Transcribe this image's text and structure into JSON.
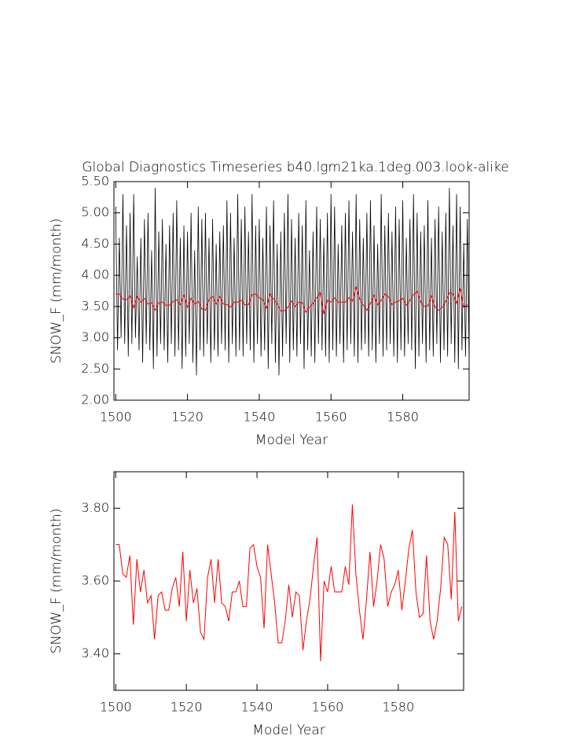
{
  "chart_data": [
    {
      "type": "line",
      "title": "Global Diagnostics Timeseries b40.lgm21ka.1deg.003.look-alike",
      "ylabel": "SNOW_F (mm/month)",
      "xlabel": "Model Year",
      "xlim": [
        1499.5,
        1598.5
      ],
      "ylim": [
        2,
        5.5
      ],
      "xticks": [
        1500,
        1520,
        1540,
        1560,
        1580
      ],
      "yticks": [
        {
          "value": 2,
          "label": "2.00"
        },
        {
          "value": 2.5,
          "label": "2.50"
        },
        {
          "value": 3,
          "label": "3.00"
        },
        {
          "value": 3.5,
          "label": "3.50"
        },
        {
          "value": 4,
          "label": "4.00"
        },
        {
          "value": 4.5,
          "label": "4.50"
        },
        {
          "value": 5,
          "label": "5.00"
        },
        {
          "value": 5.5,
          "label": "5.50"
        }
      ],
      "series": [
        {
          "color": "#000000",
          "x": [
            1500,
            1500.5,
            1501,
            1501.5,
            1502,
            1502.5,
            1503,
            1503.5,
            1504,
            1504.5,
            1505,
            1505.5,
            1506,
            1506.5,
            1507,
            1507.5,
            1508,
            1508.5,
            1509,
            1509.5,
            1510,
            1510.5,
            1511,
            1511.5,
            1512,
            1512.5,
            1513,
            1513.5,
            1514,
            1514.5,
            1515,
            1515.5,
            1516,
            1516.5,
            1517,
            1517.5,
            1518,
            1518.5,
            1519,
            1519.5,
            1520,
            1520.5,
            1521,
            1521.5,
            1522,
            1522.5,
            1523,
            1523.5,
            1524,
            1524.5,
            1525,
            1525.5,
            1526,
            1526.5,
            1527,
            1527.5,
            1528,
            1528.5,
            1529,
            1529.5,
            1530,
            1530.5,
            1531,
            1531.5,
            1532,
            1532.5,
            1533,
            1533.5,
            1534,
            1534.5,
            1535,
            1535.5,
            1536,
            1536.5,
            1537,
            1537.5,
            1538,
            1538.5,
            1539,
            1539.5,
            1540,
            1540.5,
            1541,
            1541.5,
            1542,
            1542.5,
            1543,
            1543.5,
            1544,
            1544.5,
            1545,
            1545.5,
            1546,
            1546.5,
            1547,
            1547.5,
            1548,
            1548.5,
            1549,
            1549.5,
            1550,
            1550.5,
            1551,
            1551.5,
            1552,
            1552.5,
            1553,
            1553.5,
            1554,
            1554.5,
            1555,
            1555.5,
            1556,
            1556.5,
            1557,
            1557.5,
            1558,
            1558.5,
            1559,
            1559.5,
            1560,
            1560.5,
            1561,
            1561.5,
            1562,
            1562.5,
            1563,
            1563.5,
            1564,
            1564.5,
            1565,
            1565.5,
            1566,
            1566.5,
            1567,
            1567.5,
            1568,
            1568.5,
            1569,
            1569.5,
            1570,
            1570.5,
            1571,
            1571.5,
            1572,
            1572.5,
            1573,
            1573.5,
            1574,
            1574.5,
            1575,
            1575.5,
            1576,
            1576.5,
            1577,
            1577.5,
            1578,
            1578.5,
            1579,
            1579.5,
            1580,
            1580.5,
            1581,
            1581.5,
            1582,
            1582.5,
            1583,
            1583.5,
            1584,
            1584.5,
            1585,
            1585.5,
            1586,
            1586.5,
            1587,
            1587.5,
            1588,
            1588.5,
            1589,
            1589.5,
            1590,
            1590.5,
            1591,
            1591.5,
            1592,
            1592.5,
            1593,
            1593.5,
            1594,
            1594.5,
            1595,
            1595.5,
            1596,
            1596.5,
            1597,
            1597.5,
            1598,
            1598.5
          ],
          "values": [
            5.1,
            2.8,
            4.6,
            3.0,
            5.3,
            2.9,
            4.8,
            2.7,
            5.0,
            2.9,
            5.3,
            3.0,
            4.3,
            2.8,
            4.6,
            2.6,
            4.9,
            2.9,
            5.0,
            2.8,
            4.4,
            2.5,
            5.4,
            2.7,
            4.7,
            2.9,
            4.9,
            2.8,
            4.5,
            2.6,
            4.8,
            2.9,
            5.0,
            2.7,
            5.2,
            2.8,
            4.6,
            2.5,
            4.8,
            2.7,
            4.7,
            2.9,
            5.0,
            2.6,
            4.4,
            2.4,
            5.1,
            2.8,
            4.9,
            2.7,
            5.0,
            2.9,
            4.6,
            2.6,
            4.9,
            2.8,
            4.5,
            2.7,
            4.7,
            2.9,
            4.8,
            2.8,
            5.2,
            2.6,
            5.0,
            2.9,
            4.6,
            2.7,
            5.3,
            2.8,
            4.9,
            2.7,
            5.1,
            2.9,
            4.7,
            2.8,
            5.3,
            2.6,
            4.8,
            2.9,
            4.9,
            2.7,
            4.6,
            2.8,
            5.1,
            2.5,
            4.8,
            2.9,
            5.2,
            2.6,
            4.5,
            2.4,
            4.7,
            2.7,
            5.0,
            2.9,
            5.3,
            2.6,
            4.9,
            2.8,
            4.6,
            2.7,
            5.0,
            2.9,
            4.8,
            2.5,
            5.2,
            2.8,
            4.4,
            2.7,
            4.7,
            2.6,
            5.1,
            2.9,
            4.9,
            2.8,
            4.6,
            2.7,
            5.0,
            2.6,
            5.3,
            2.8,
            5.1,
            2.7,
            4.5,
            2.9,
            4.8,
            2.6,
            5.0,
            2.8,
            5.2,
            2.9,
            4.7,
            2.7,
            5.3,
            2.6,
            4.9,
            2.8,
            4.6,
            2.9,
            5.0,
            2.7,
            5.2,
            2.8,
            4.8,
            2.6,
            4.5,
            2.9,
            5.3,
            2.7,
            4.8,
            2.8,
            5.0,
            2.9,
            4.7,
            2.7,
            5.1,
            2.6,
            4.9,
            2.8,
            5.2,
            2.7,
            4.6,
            2.9,
            4.9,
            2.8,
            5.3,
            2.5,
            5.0,
            2.7,
            4.7,
            2.9,
            4.8,
            2.6,
            5.2,
            2.8,
            4.6,
            2.7,
            4.9,
            2.9,
            5.1,
            2.6,
            4.7,
            2.8,
            5.0,
            2.7,
            5.4,
            2.9,
            4.8,
            2.6,
            5.3,
            2.5,
            5.1,
            2.8,
            4.5,
            2.7,
            4.9,
            2.6
          ]
        },
        {
          "color": "#ff0000",
          "x": [
            1500,
            1501,
            1502,
            1503,
            1504,
            1505,
            1506,
            1507,
            1508,
            1509,
            1510,
            1511,
            1512,
            1513,
            1514,
            1515,
            1516,
            1517,
            1518,
            1519,
            1520,
            1521,
            1522,
            1523,
            1524,
            1525,
            1526,
            1527,
            1528,
            1529,
            1530,
            1531,
            1532,
            1533,
            1534,
            1535,
            1536,
            1537,
            1538,
            1539,
            1540,
            1541,
            1542,
            1543,
            1544,
            1545,
            1546,
            1547,
            1548,
            1549,
            1550,
            1551,
            1552,
            1553,
            1554,
            1555,
            1556,
            1557,
            1558,
            1559,
            1560,
            1561,
            1562,
            1563,
            1564,
            1565,
            1566,
            1567,
            1568,
            1569,
            1570,
            1571,
            1572,
            1573,
            1574,
            1575,
            1576,
            1577,
            1578,
            1579,
            1580,
            1581,
            1582,
            1583,
            1584,
            1585,
            1586,
            1587,
            1588,
            1589,
            1590,
            1591,
            1592,
            1593,
            1594,
            1595,
            1596,
            1597,
            1598
          ],
          "values": [
            3.7,
            3.7,
            3.62,
            3.61,
            3.67,
            3.48,
            3.66,
            3.57,
            3.63,
            3.54,
            3.56,
            3.44,
            3.56,
            3.57,
            3.52,
            3.52,
            3.58,
            3.61,
            3.53,
            3.68,
            3.49,
            3.63,
            3.54,
            3.58,
            3.46,
            3.44,
            3.61,
            3.66,
            3.54,
            3.66,
            3.54,
            3.53,
            3.49,
            3.57,
            3.57,
            3.6,
            3.53,
            3.53,
            3.69,
            3.7,
            3.64,
            3.61,
            3.47,
            3.7,
            3.62,
            3.54,
            3.43,
            3.43,
            3.49,
            3.59,
            3.5,
            3.57,
            3.56,
            3.41,
            3.49,
            3.55,
            3.64,
            3.72,
            3.38,
            3.6,
            3.57,
            3.64,
            3.57,
            3.57,
            3.57,
            3.64,
            3.59,
            3.81,
            3.62,
            3.52,
            3.44,
            3.55,
            3.68,
            3.53,
            3.6,
            3.7,
            3.66,
            3.53,
            3.57,
            3.59,
            3.63,
            3.52,
            3.6,
            3.69,
            3.74,
            3.57,
            3.5,
            3.51,
            3.67,
            3.49,
            3.44,
            3.49,
            3.58,
            3.72,
            3.7,
            3.55,
            3.79,
            3.49,
            3.53
          ]
        }
      ]
    },
    {
      "type": "line",
      "ylabel": "SNOW_F (mm/month)",
      "xlabel": "Model Year",
      "xlim": [
        1499.5,
        1598.5
      ],
      "ylim": [
        3.3,
        3.9
      ],
      "xticks": [
        1500,
        1520,
        1540,
        1560,
        1580
      ],
      "yticks": [
        {
          "value": 3.4,
          "label": "3.40"
        },
        {
          "value": 3.6,
          "label": "3.60"
        },
        {
          "value": 3.8,
          "label": "3.80"
        }
      ],
      "series": [
        {
          "color": "#ff0000",
          "x": [
            1500,
            1501,
            1502,
            1503,
            1504,
            1505,
            1506,
            1507,
            1508,
            1509,
            1510,
            1511,
            1512,
            1513,
            1514,
            1515,
            1516,
            1517,
            1518,
            1519,
            1520,
            1521,
            1522,
            1523,
            1524,
            1525,
            1526,
            1527,
            1528,
            1529,
            1530,
            1531,
            1532,
            1533,
            1534,
            1535,
            1536,
            1537,
            1538,
            1539,
            1540,
            1541,
            1542,
            1543,
            1544,
            1545,
            1546,
            1547,
            1548,
            1549,
            1550,
            1551,
            1552,
            1553,
            1554,
            1555,
            1556,
            1557,
            1558,
            1559,
            1560,
            1561,
            1562,
            1563,
            1564,
            1565,
            1566,
            1567,
            1568,
            1569,
            1570,
            1571,
            1572,
            1573,
            1574,
            1575,
            1576,
            1577,
            1578,
            1579,
            1580,
            1581,
            1582,
            1583,
            1584,
            1585,
            1586,
            1587,
            1588,
            1589,
            1590,
            1591,
            1592,
            1593,
            1594,
            1595,
            1596,
            1597,
            1598
          ],
          "values": [
            3.7,
            3.7,
            3.62,
            3.61,
            3.67,
            3.48,
            3.66,
            3.57,
            3.63,
            3.54,
            3.56,
            3.44,
            3.56,
            3.57,
            3.52,
            3.52,
            3.58,
            3.61,
            3.53,
            3.68,
            3.49,
            3.63,
            3.54,
            3.58,
            3.46,
            3.44,
            3.61,
            3.66,
            3.54,
            3.66,
            3.54,
            3.53,
            3.49,
            3.57,
            3.57,
            3.6,
            3.53,
            3.53,
            3.69,
            3.7,
            3.64,
            3.61,
            3.47,
            3.7,
            3.62,
            3.54,
            3.43,
            3.43,
            3.49,
            3.59,
            3.5,
            3.57,
            3.56,
            3.41,
            3.49,
            3.55,
            3.64,
            3.72,
            3.38,
            3.6,
            3.57,
            3.64,
            3.57,
            3.57,
            3.57,
            3.64,
            3.59,
            3.81,
            3.62,
            3.52,
            3.44,
            3.55,
            3.68,
            3.53,
            3.6,
            3.7,
            3.66,
            3.53,
            3.57,
            3.59,
            3.63,
            3.52,
            3.6,
            3.69,
            3.74,
            3.57,
            3.5,
            3.51,
            3.67,
            3.49,
            3.44,
            3.49,
            3.58,
            3.72,
            3.7,
            3.55,
            3.79,
            3.49,
            3.53
          ]
        }
      ]
    }
  ]
}
